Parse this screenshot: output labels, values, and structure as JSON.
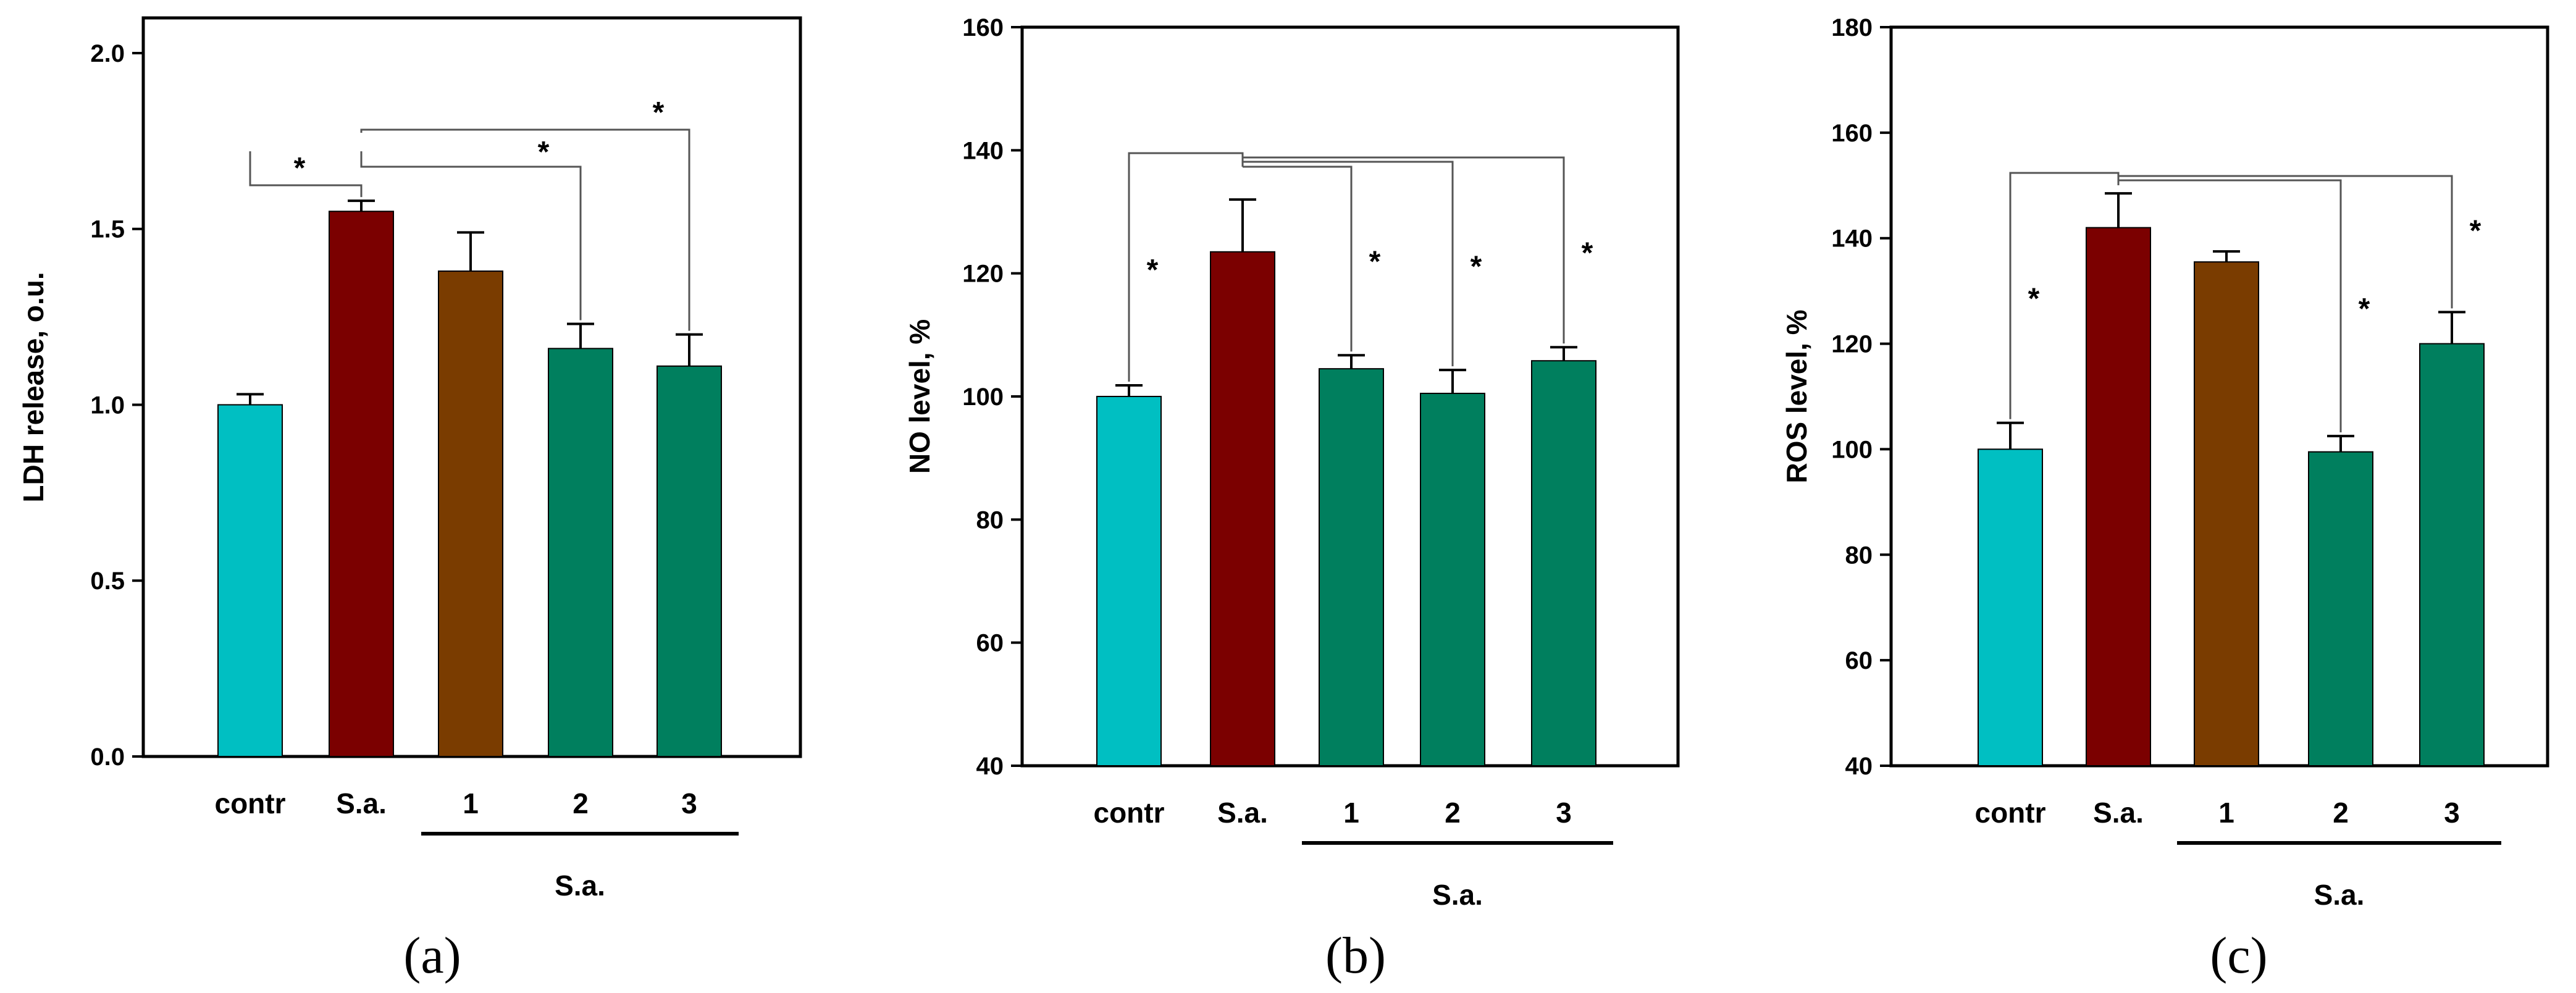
{
  "colors": {
    "contr": "#00BFC2",
    "sa": "#7B0000",
    "brown": "#7A3C00",
    "green": "#007F5E",
    "axis": "#000000",
    "bracket": "#555555"
  },
  "chart_data": [
    {
      "id": "a",
      "type": "bar",
      "panel_label": "(a)",
      "ylabel": "LDH release, o.u.",
      "ylim": [
        0,
        2.1
      ],
      "yticks": [
        0.0,
        0.5,
        1.0,
        1.5,
        2.0
      ],
      "ytick_labels": [
        "0.0",
        "0.5",
        "1.0",
        "1.5",
        "2.0"
      ],
      "categories": [
        "contr",
        "S.a.",
        "1",
        "2",
        "3"
      ],
      "group_label": "S.a.",
      "values": [
        1.0,
        1.55,
        1.38,
        1.16,
        1.11
      ],
      "errors": [
        0.03,
        0.03,
        0.11,
        0.07,
        0.09
      ],
      "bar_colors": [
        "contr",
        "sa",
        "brown",
        "green",
        "green"
      ],
      "significance": [
        {
          "from": 0,
          "to": 1,
          "label": "*"
        },
        {
          "from": 1,
          "to": 3,
          "label": "*"
        },
        {
          "from": 1,
          "to": 4,
          "label": "*"
        }
      ]
    },
    {
      "id": "b",
      "type": "bar",
      "panel_label": "(b)",
      "ylabel": "NO level, %",
      "ylim": [
        40,
        160
      ],
      "yticks": [
        40,
        60,
        80,
        100,
        120,
        140,
        160
      ],
      "ytick_labels": [
        "40",
        "60",
        "80",
        "100",
        "120",
        "140",
        "160"
      ],
      "categories": [
        "contr",
        "S.a.",
        "1",
        "2",
        "3"
      ],
      "group_label": "S.a.",
      "values": [
        100,
        123.5,
        104.5,
        100.5,
        105.8
      ],
      "errors": [
        1.8,
        8.5,
        2.2,
        3.8,
        2.2
      ],
      "bar_colors": [
        "contr",
        "sa",
        "green",
        "green",
        "green"
      ],
      "significance": [
        {
          "from": 1,
          "to": 0,
          "label": "*"
        },
        {
          "from": 1,
          "to": 2,
          "label": "*"
        },
        {
          "from": 1,
          "to": 3,
          "label": "*"
        },
        {
          "from": 1,
          "to": 4,
          "label": "*"
        }
      ]
    },
    {
      "id": "c",
      "type": "bar",
      "panel_label": "(c)",
      "ylabel": "ROS level, %",
      "ylim": [
        40,
        180
      ],
      "yticks": [
        40,
        60,
        80,
        100,
        120,
        140,
        160,
        180
      ],
      "ytick_labels": [
        "40",
        "60",
        "80",
        "100",
        "120",
        "140",
        "160",
        "180"
      ],
      "categories": [
        "contr",
        "S.a.",
        "1",
        "2",
        "3"
      ],
      "group_label": "S.a.",
      "values": [
        100,
        142,
        135.5,
        99.5,
        120
      ],
      "errors": [
        5,
        6.5,
        2,
        3,
        6
      ],
      "bar_colors": [
        "contr",
        "sa",
        "brown",
        "green",
        "green"
      ],
      "significance": [
        {
          "from": 1,
          "to": 0,
          "label": "*"
        },
        {
          "from": 1,
          "to": 3,
          "label": "*"
        },
        {
          "from": 1,
          "to": 4,
          "label": "*"
        }
      ]
    }
  ]
}
